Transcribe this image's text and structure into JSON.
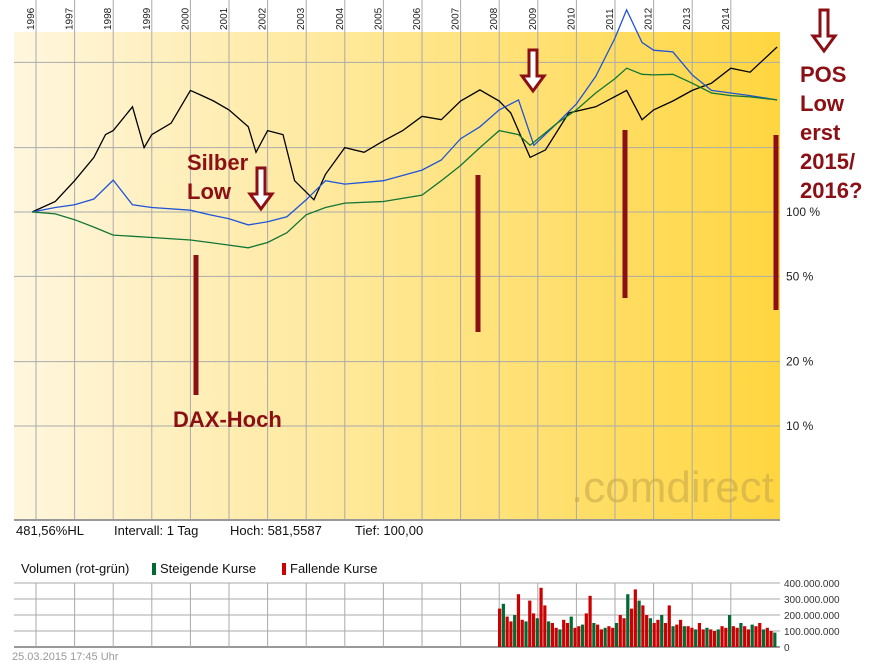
{
  "chart_data": {
    "type": "line",
    "years": [
      "1996",
      "1997",
      "1998",
      "1999",
      "2000",
      "2001",
      "2002",
      "2003",
      "2004",
      "2005",
      "2006",
      "2007",
      "2008",
      "2009",
      "2010",
      "2011",
      "2012",
      "2013",
      "2014"
    ],
    "y_scale": "log",
    "y_tick_labels": [
      "100 %",
      "50 %",
      "20 %",
      "10 %"
    ],
    "grid": true,
    "series": [
      {
        "color": "#000000",
        "points": [
          [
            1995.9,
            100
          ],
          [
            1996.5,
            112
          ],
          [
            1997.0,
            140
          ],
          [
            1997.5,
            180
          ],
          [
            1997.8,
            230
          ],
          [
            1998.0,
            240
          ],
          [
            1998.5,
            310
          ],
          [
            1998.8,
            200
          ],
          [
            1999.0,
            230
          ],
          [
            1999.5,
            260
          ],
          [
            2000.0,
            370
          ],
          [
            2000.3,
            350
          ],
          [
            2000.6,
            330
          ],
          [
            2001.0,
            300
          ],
          [
            2001.5,
            250
          ],
          [
            2001.7,
            190
          ],
          [
            2002.0,
            240
          ],
          [
            2002.4,
            230
          ],
          [
            2002.7,
            140
          ],
          [
            2003.2,
            114
          ],
          [
            2003.5,
            150
          ],
          [
            2004.0,
            200
          ],
          [
            2004.5,
            190
          ],
          [
            2005.0,
            215
          ],
          [
            2005.5,
            240
          ],
          [
            2006.0,
            280
          ],
          [
            2006.5,
            270
          ],
          [
            2007.0,
            330
          ],
          [
            2007.5,
            372
          ],
          [
            2008.0,
            330
          ],
          [
            2008.3,
            290
          ],
          [
            2008.8,
            180
          ],
          [
            2009.2,
            195
          ],
          [
            2009.8,
            290
          ],
          [
            2010.5,
            310
          ],
          [
            2011.3,
            370
          ],
          [
            2011.7,
            270
          ],
          [
            2012.0,
            300
          ],
          [
            2012.5,
            330
          ],
          [
            2013.0,
            370
          ],
          [
            2013.5,
            400
          ],
          [
            2014.0,
            470
          ],
          [
            2014.5,
            450
          ],
          [
            2015.2,
            590
          ]
        ]
      },
      {
        "color": "#1f55d6",
        "points": [
          [
            1995.9,
            100
          ],
          [
            1996.5,
            105
          ],
          [
            1997.0,
            108
          ],
          [
            1997.5,
            115
          ],
          [
            1998.0,
            141
          ],
          [
            1998.5,
            108
          ],
          [
            1999.0,
            105
          ],
          [
            2000.0,
            102
          ],
          [
            2000.5,
            97
          ],
          [
            2001.0,
            93
          ],
          [
            2001.5,
            87
          ],
          [
            2002.0,
            90
          ],
          [
            2002.5,
            95
          ],
          [
            2003.0,
            114
          ],
          [
            2003.5,
            140
          ],
          [
            2004.0,
            135
          ],
          [
            2005.0,
            140
          ],
          [
            2006.0,
            157
          ],
          [
            2006.5,
            175
          ],
          [
            2007.0,
            220
          ],
          [
            2007.5,
            250
          ],
          [
            2008.0,
            300
          ],
          [
            2008.5,
            334
          ],
          [
            2008.9,
            205
          ],
          [
            2009.5,
            260
          ],
          [
            2010.0,
            320
          ],
          [
            2010.5,
            430
          ],
          [
            2011.0,
            650
          ],
          [
            2011.3,
            880
          ],
          [
            2011.7,
            620
          ],
          [
            2012.0,
            570
          ],
          [
            2012.5,
            560
          ],
          [
            2013.0,
            437
          ],
          [
            2013.5,
            370
          ],
          [
            2014.0,
            360
          ],
          [
            2014.5,
            350
          ],
          [
            2015.2,
            334
          ]
        ]
      },
      {
        "color": "#127534",
        "points": [
          [
            1995.9,
            100
          ],
          [
            1996.5,
            98
          ],
          [
            1997.0,
            92
          ],
          [
            1997.5,
            85
          ],
          [
            1998.0,
            78
          ],
          [
            1999.0,
            76
          ],
          [
            2000.0,
            74
          ],
          [
            2000.5,
            72
          ],
          [
            2001.0,
            70
          ],
          [
            2001.5,
            68
          ],
          [
            2002.0,
            72
          ],
          [
            2002.5,
            80
          ],
          [
            2003.0,
            97
          ],
          [
            2003.5,
            105
          ],
          [
            2004.0,
            110
          ],
          [
            2005.0,
            112
          ],
          [
            2006.0,
            120
          ],
          [
            2006.5,
            140
          ],
          [
            2007.0,
            165
          ],
          [
            2007.5,
            200
          ],
          [
            2008.0,
            240
          ],
          [
            2008.5,
            230
          ],
          [
            2008.8,
            205
          ],
          [
            2009.5,
            260
          ],
          [
            2010.0,
            300
          ],
          [
            2010.5,
            360
          ],
          [
            2011.0,
            420
          ],
          [
            2011.3,
            470
          ],
          [
            2011.7,
            440
          ],
          [
            2012.0,
            437
          ],
          [
            2012.5,
            440
          ],
          [
            2013.0,
            400
          ],
          [
            2013.5,
            360
          ],
          [
            2014.0,
            350
          ],
          [
            2014.5,
            345
          ],
          [
            2015.2,
            334
          ]
        ]
      }
    ],
    "volume": {
      "title": "Volumen (rot-grün)",
      "legend_up": "Steigende Kurse",
      "legend_down": "Fallende Kurse",
      "up_color": "#006a33",
      "down_color": "#cc0000",
      "y_tick_labels": [
        "400.000.000",
        "300.000.000",
        "200.000.000",
        "100.000.000",
        "0"
      ],
      "bars_millions": [
        240,
        270,
        190,
        160,
        200,
        330,
        170,
        160,
        290,
        210,
        180,
        370,
        260,
        160,
        150,
        120,
        110,
        170,
        150,
        190,
        120,
        130,
        140,
        210,
        320,
        150,
        140,
        110,
        120,
        130,
        120,
        150,
        200,
        180,
        330,
        240,
        360,
        290,
        260,
        200,
        180,
        150,
        170,
        200,
        150,
        260,
        130,
        140,
        170,
        130,
        130,
        120,
        110,
        150,
        110,
        120,
        110,
        100,
        110,
        130,
        120,
        200,
        130,
        120,
        150,
        130,
        110,
        140,
        130,
        150,
        110,
        120,
        100,
        90
      ]
    }
  },
  "info": {
    "hl": "481,56%HL",
    "interval": "Intervall: 1 Tag",
    "high": "Hoch: 581,5587",
    "low": "Tief:   100,00"
  },
  "watermark": ".comdirect",
  "timestamp": "25.03.2015 17:45 Uhr",
  "annotations": {
    "silber": "Silber Low",
    "dax": "DAX-Hoch",
    "pos": [
      "POS",
      "Low",
      "erst",
      "2015/",
      "2016?"
    ]
  },
  "colors": {
    "annotation": "#8b0f14",
    "fill_start": "#fff5dc",
    "fill_end": "#ffd84a"
  }
}
